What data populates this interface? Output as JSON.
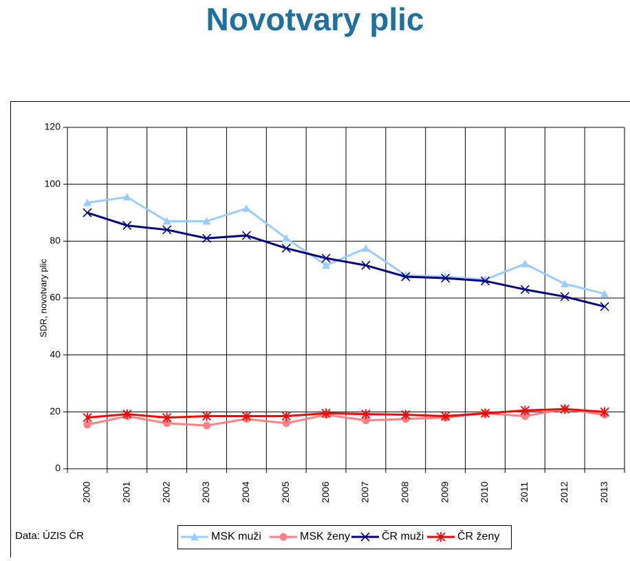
{
  "chart_data": {
    "type": "line",
    "title": "Novotvary plic",
    "ylabel": "SDR, novotvary plic",
    "source": "Data: ÚZIS ČR",
    "categories": [
      "2000",
      "2001",
      "2002",
      "2003",
      "2004",
      "2005",
      "2006",
      "2007",
      "2008",
      "2009",
      "2010",
      "2011",
      "2012",
      "2013"
    ],
    "series": [
      {
        "name": "MSK muži",
        "color": "#99ccff",
        "marker": "triangle",
        "values": [
          93.5,
          95.5,
          87,
          87,
          91.5,
          81,
          71.5,
          77.5,
          68,
          67.5,
          66.5,
          72,
          65,
          61.5
        ]
      },
      {
        "name": "MSK ženy",
        "color": "#ff8080",
        "marker": "circle",
        "values": [
          15.5,
          18.5,
          16,
          15.2,
          17.5,
          16,
          19,
          17,
          17.5,
          18,
          19.5,
          18.5,
          21,
          19
        ]
      },
      {
        "name": "ČR muži",
        "color": "#000080",
        "marker": "x",
        "values": [
          90,
          85.5,
          84,
          81,
          82,
          77.5,
          74,
          71.5,
          67.5,
          67,
          66,
          63,
          60.5,
          57
        ]
      },
      {
        "name": "ČR ženy",
        "color": "#ff0000",
        "marker": "star",
        "values": [
          18,
          19.2,
          18,
          18.5,
          18.5,
          18.5,
          19.5,
          19.2,
          19,
          18.5,
          19.5,
          20.5,
          21,
          20
        ]
      }
    ],
    "ylim": [
      0,
      120
    ],
    "yticks": [
      0,
      20,
      40,
      60,
      80,
      100,
      120
    ],
    "grid": true,
    "legend": "bottom"
  }
}
